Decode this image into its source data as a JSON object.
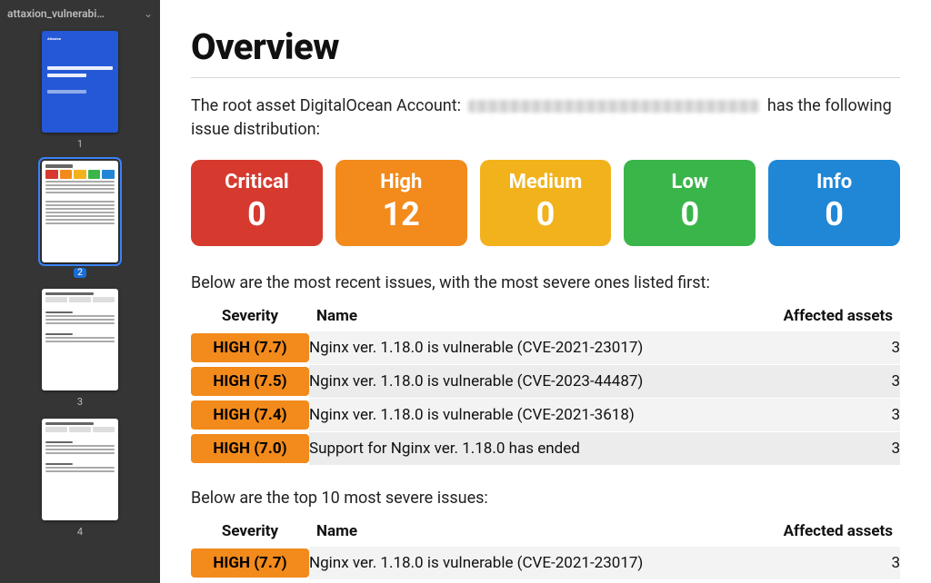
{
  "app": {
    "file_title": "attaxion_vulnerabi…"
  },
  "colors": {
    "critical": "#d63a2f",
    "high": "#f28a1c",
    "medium": "#f2b21c",
    "low": "#3ab54a",
    "info": "#1f87d6",
    "sev_pill": "#f28a1c",
    "cover_bg": "#2558d6"
  },
  "thumbnails": [
    {
      "page": "1",
      "kind": "cover",
      "selected": false
    },
    {
      "page": "2",
      "kind": "overview",
      "selected": true
    },
    {
      "page": "3",
      "kind": "detail",
      "selected": false
    },
    {
      "page": "4",
      "kind": "detail",
      "selected": false
    }
  ],
  "page": {
    "title": "Overview",
    "intro_prefix": "The root asset DigitalOcean Account:",
    "intro_suffix": "has the following issue distribution:",
    "cards": [
      {
        "label": "Critical",
        "value": "0",
        "color_key": "critical"
      },
      {
        "label": "High",
        "value": "12",
        "color_key": "high"
      },
      {
        "label": "Medium",
        "value": "0",
        "color_key": "medium"
      },
      {
        "label": "Low",
        "value": "0",
        "color_key": "low"
      },
      {
        "label": "Info",
        "value": "0",
        "color_key": "info"
      }
    ],
    "recent_heading": "Below are the most recent issues, with the most severe ones listed first:",
    "top10_heading": "Below are the top 10 most severe issues:",
    "columns": {
      "severity": "Severity",
      "name": "Name",
      "affected": "Affected assets"
    },
    "recent_issues": [
      {
        "severity": "HIGH (7.7)",
        "name": "Nginx ver. 1.18.0 is vulnerable (CVE-2021-23017)",
        "affected": "3"
      },
      {
        "severity": "HIGH (7.5)",
        "name": "Nginx ver. 1.18.0 is vulnerable (CVE-2023-44487)",
        "affected": "3"
      },
      {
        "severity": "HIGH (7.4)",
        "name": "Nginx ver. 1.18.0 is vulnerable (CVE-2021-3618)",
        "affected": "3"
      },
      {
        "severity": "HIGH (7.0)",
        "name": "Support for Nginx ver. 1.18.0 has ended",
        "affected": "3"
      }
    ],
    "top10_issues": [
      {
        "severity": "HIGH (7.7)",
        "name": "Nginx ver. 1.18.0 is vulnerable (CVE-2021-23017)",
        "affected": "3"
      }
    ]
  }
}
